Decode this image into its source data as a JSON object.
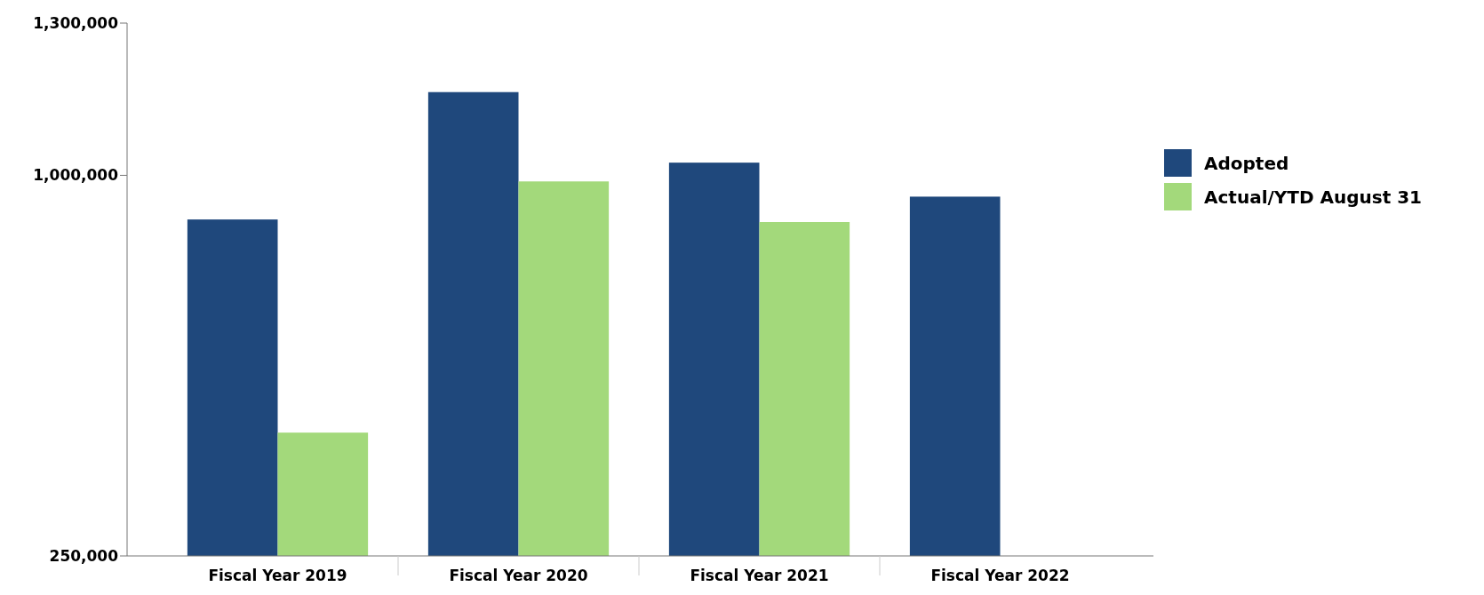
{
  "chart_data": {
    "type": "bar",
    "categories": [
      "Fiscal Year 2019",
      "Fiscal Year 2020",
      "Fiscal Year 2021",
      "Fiscal Year 2022"
    ],
    "series": [
      {
        "name": "Adopted",
        "color": "#1f487c",
        "values": [
          913000,
          1164000,
          1025000,
          958000
        ]
      },
      {
        "name": "Actual/YTD August 31",
        "color": "#a3d97b",
        "values": [
          493000,
          988000,
          908000,
          null
        ]
      }
    ],
    "ylim": [
      250000,
      1300000
    ],
    "yticks": [
      {
        "value": 250000,
        "label": "250,000"
      },
      {
        "value": 1000000,
        "label": "1,000,000"
      },
      {
        "value": 1300000,
        "label": "1,300,000"
      }
    ],
    "legend": "right"
  }
}
